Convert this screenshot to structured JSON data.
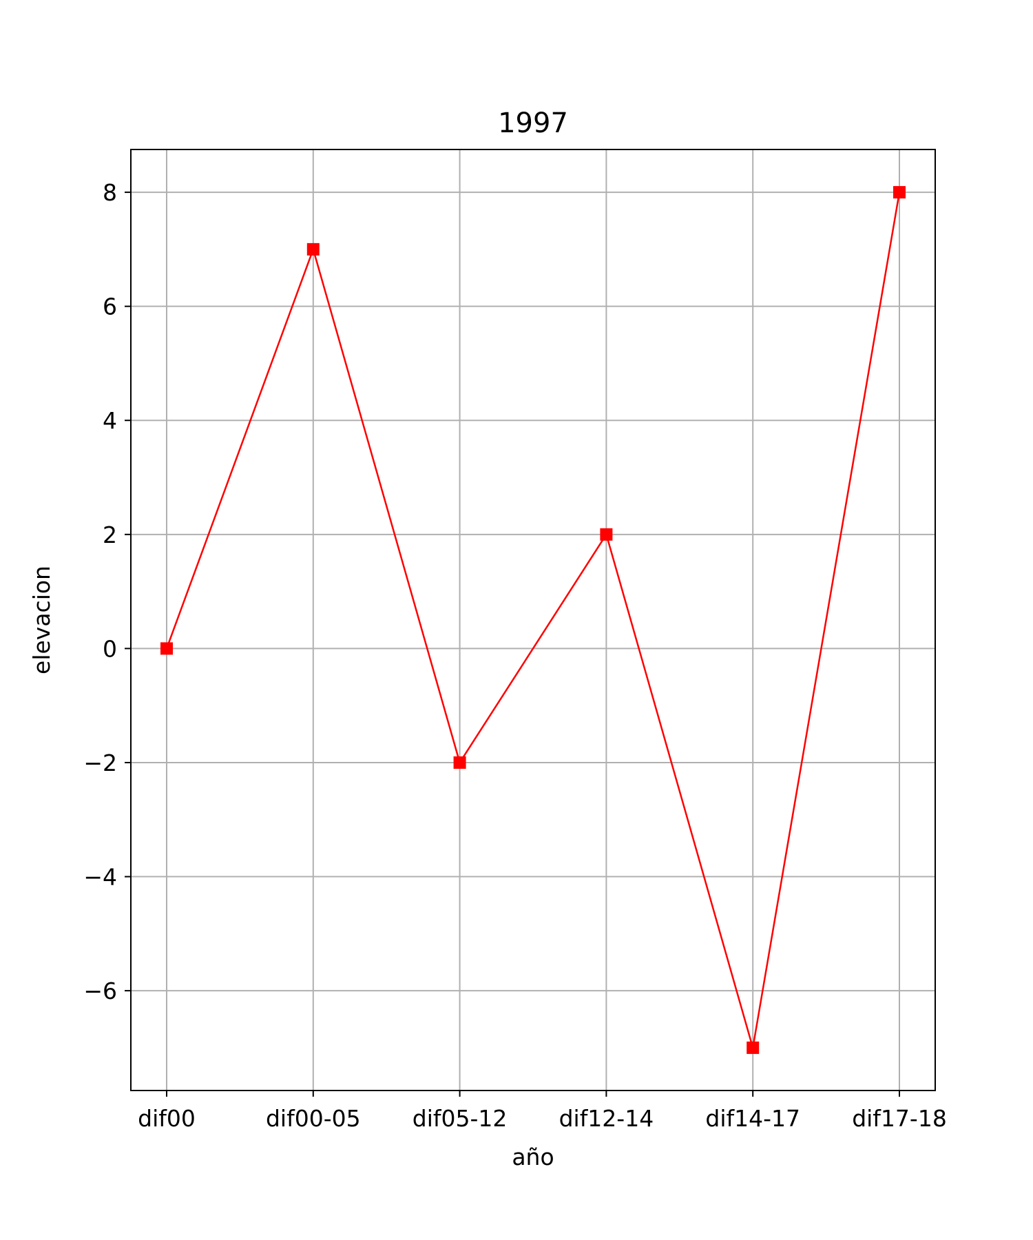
{
  "chart_data": {
    "type": "line",
    "title": "1997",
    "xlabel": "año",
    "ylabel": "elevacion",
    "categories": [
      "dif00",
      "dif00-05",
      "dif05-12",
      "dif12-14",
      "dif14-17",
      "dif17-18"
    ],
    "series": [
      {
        "values": [
          0,
          7,
          -2,
          2,
          -7,
          8
        ],
        "color": "#ff0000",
        "marker": "square"
      }
    ],
    "ylim": [
      -7.75,
      8.75
    ],
    "yticks": [
      -6,
      -4,
      -2,
      0,
      2,
      4,
      6,
      8
    ],
    "ytick_labels": [
      "−6",
      "−4",
      "−2",
      "0",
      "2",
      "4",
      "6",
      "8"
    ],
    "grid": true,
    "grid_color": "#b0b0b0",
    "legend": "none"
  }
}
